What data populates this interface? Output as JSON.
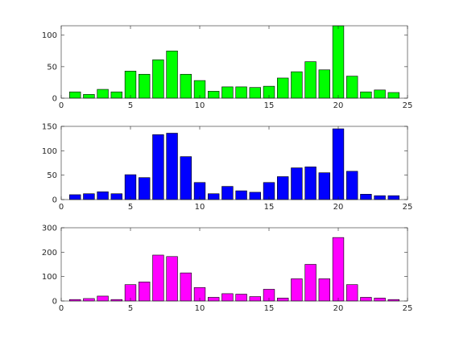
{
  "chart_data": [
    {
      "type": "bar",
      "x": [
        1,
        2,
        3,
        4,
        5,
        6,
        7,
        8,
        9,
        10,
        11,
        12,
        13,
        14,
        15,
        16,
        17,
        18,
        19,
        20,
        21,
        22,
        23,
        24
      ],
      "values": [
        10,
        6,
        14,
        10,
        43,
        38,
        61,
        75,
        38,
        28,
        11,
        18,
        18,
        17,
        19,
        32,
        42,
        58,
        45,
        115,
        35,
        10,
        13,
        9
      ],
      "color": "#00ff00",
      "xlim": [
        0,
        25
      ],
      "ylim": [
        0,
        115
      ],
      "xticks": [
        "0",
        "5",
        "10",
        "15",
        "20",
        "25"
      ],
      "yticks": [
        "0",
        "50",
        "100"
      ],
      "grid": false
    },
    {
      "type": "bar",
      "x": [
        1,
        2,
        3,
        4,
        5,
        6,
        7,
        8,
        9,
        10,
        11,
        12,
        13,
        14,
        15,
        16,
        17,
        18,
        19,
        20,
        21,
        22,
        23,
        24
      ],
      "values": [
        10,
        12,
        16,
        12,
        51,
        45,
        133,
        136,
        88,
        35,
        12,
        27,
        18,
        15,
        35,
        47,
        65,
        67,
        55,
        145,
        58,
        11,
        8,
        8
      ],
      "color": "#0000ff",
      "xlim": [
        0,
        25
      ],
      "ylim": [
        0,
        150
      ],
      "xticks": [
        "0",
        "5",
        "10",
        "15",
        "20",
        "25"
      ],
      "yticks": [
        "0",
        "50",
        "100",
        "150"
      ],
      "grid": false
    },
    {
      "type": "bar",
      "x": [
        1,
        2,
        3,
        4,
        5,
        6,
        7,
        8,
        9,
        10,
        11,
        12,
        13,
        14,
        15,
        16,
        17,
        18,
        19,
        20,
        21,
        22,
        23,
        24
      ],
      "values": [
        6,
        10,
        20,
        6,
        67,
        78,
        188,
        182,
        115,
        55,
        15,
        30,
        28,
        18,
        48,
        12,
        91,
        150,
        91,
        260,
        67,
        15,
        12,
        6
      ],
      "color": "#ff00ff",
      "xlim": [
        0,
        25
      ],
      "ylim": [
        0,
        300
      ],
      "xticks": [
        "0",
        "5",
        "10",
        "15",
        "20",
        "25"
      ],
      "yticks": [
        "0",
        "100",
        "200",
        "300"
      ],
      "grid": false
    }
  ]
}
